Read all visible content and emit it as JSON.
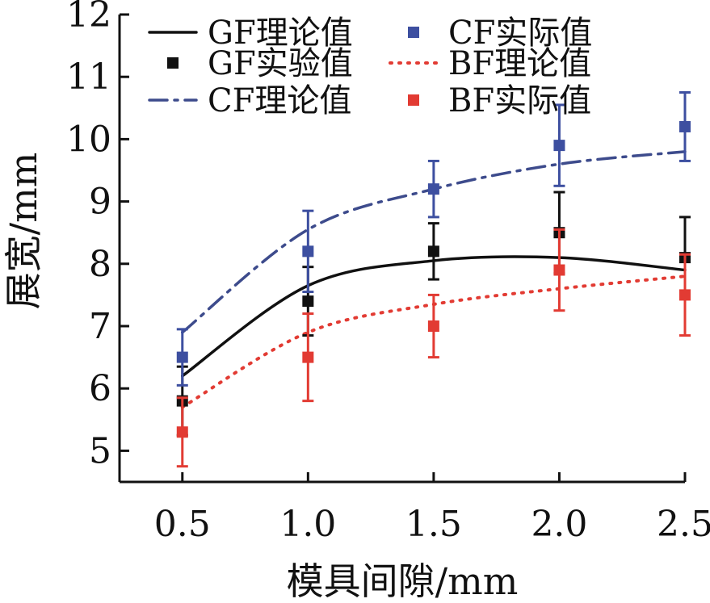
{
  "chart_data": {
    "type": "line",
    "title": "",
    "xlabel": "模具间隙/mm",
    "ylabel": "展宽/mm",
    "xlim": [
      0.25,
      2.5
    ],
    "ylim": [
      4.5,
      12
    ],
    "x_ticks": [
      "0.5",
      "1.0",
      "1.5",
      "2.0",
      "2.5"
    ],
    "y_ticks": [
      "5",
      "6",
      "7",
      "8",
      "9",
      "10",
      "11",
      "12"
    ],
    "grid": false,
    "legend_position": "top",
    "x": [
      0.5,
      1.0,
      1.5,
      2.0,
      2.5
    ],
    "series": [
      {
        "name": "GF理论值",
        "kind": "line",
        "style": "solid",
        "color": "#111111",
        "x": [
          0.5,
          1.0,
          1.5,
          2.0,
          2.5
        ],
        "values": [
          6.2,
          7.65,
          8.05,
          8.1,
          7.9
        ]
      },
      {
        "name": "GF实验值",
        "kind": "points",
        "color": "#111111",
        "x": [
          0.5,
          1.0,
          1.5,
          2.0,
          2.5
        ],
        "values": [
          5.8,
          7.4,
          8.2,
          8.5,
          8.1
        ],
        "error": [
          0.55,
          0.55,
          0.45,
          0.65,
          0.65
        ]
      },
      {
        "name": "CF理论值",
        "kind": "line",
        "style": "dashdot",
        "color": "#3d4b8c",
        "x": [
          0.5,
          1.0,
          1.5,
          2.0,
          2.5
        ],
        "values": [
          6.9,
          8.55,
          9.2,
          9.6,
          9.8
        ]
      },
      {
        "name": "CF实际值",
        "kind": "points",
        "color": "#3d4fa0",
        "x": [
          0.5,
          1.0,
          1.5,
          2.0,
          2.5
        ],
        "values": [
          6.5,
          8.2,
          9.2,
          9.9,
          10.2
        ],
        "error": [
          0.45,
          0.65,
          0.45,
          0.65,
          0.55
        ]
      },
      {
        "name": "BF理论值",
        "kind": "line",
        "style": "dotted",
        "color": "#e23b33",
        "x": [
          0.5,
          1.0,
          1.5,
          2.0,
          2.5
        ],
        "values": [
          5.7,
          6.9,
          7.35,
          7.6,
          7.8
        ]
      },
      {
        "name": "BF实际值",
        "kind": "points",
        "color": "#e23b33",
        "x": [
          0.5,
          1.0,
          1.5,
          2.0,
          2.5
        ],
        "values": [
          5.3,
          6.5,
          7.0,
          7.9,
          7.5
        ],
        "error": [
          0.55,
          0.7,
          0.5,
          0.65,
          0.65
        ]
      }
    ],
    "legend": [
      {
        "label": "GF理论值",
        "series": 0
      },
      {
        "label": "CF实际值",
        "series": 3
      },
      {
        "label": "GF实验值",
        "series": 1
      },
      {
        "label": "BF理论值",
        "series": 4
      },
      {
        "label": "CF理论值",
        "series": 2
      },
      {
        "label": "BF实际值",
        "series": 5
      }
    ]
  }
}
